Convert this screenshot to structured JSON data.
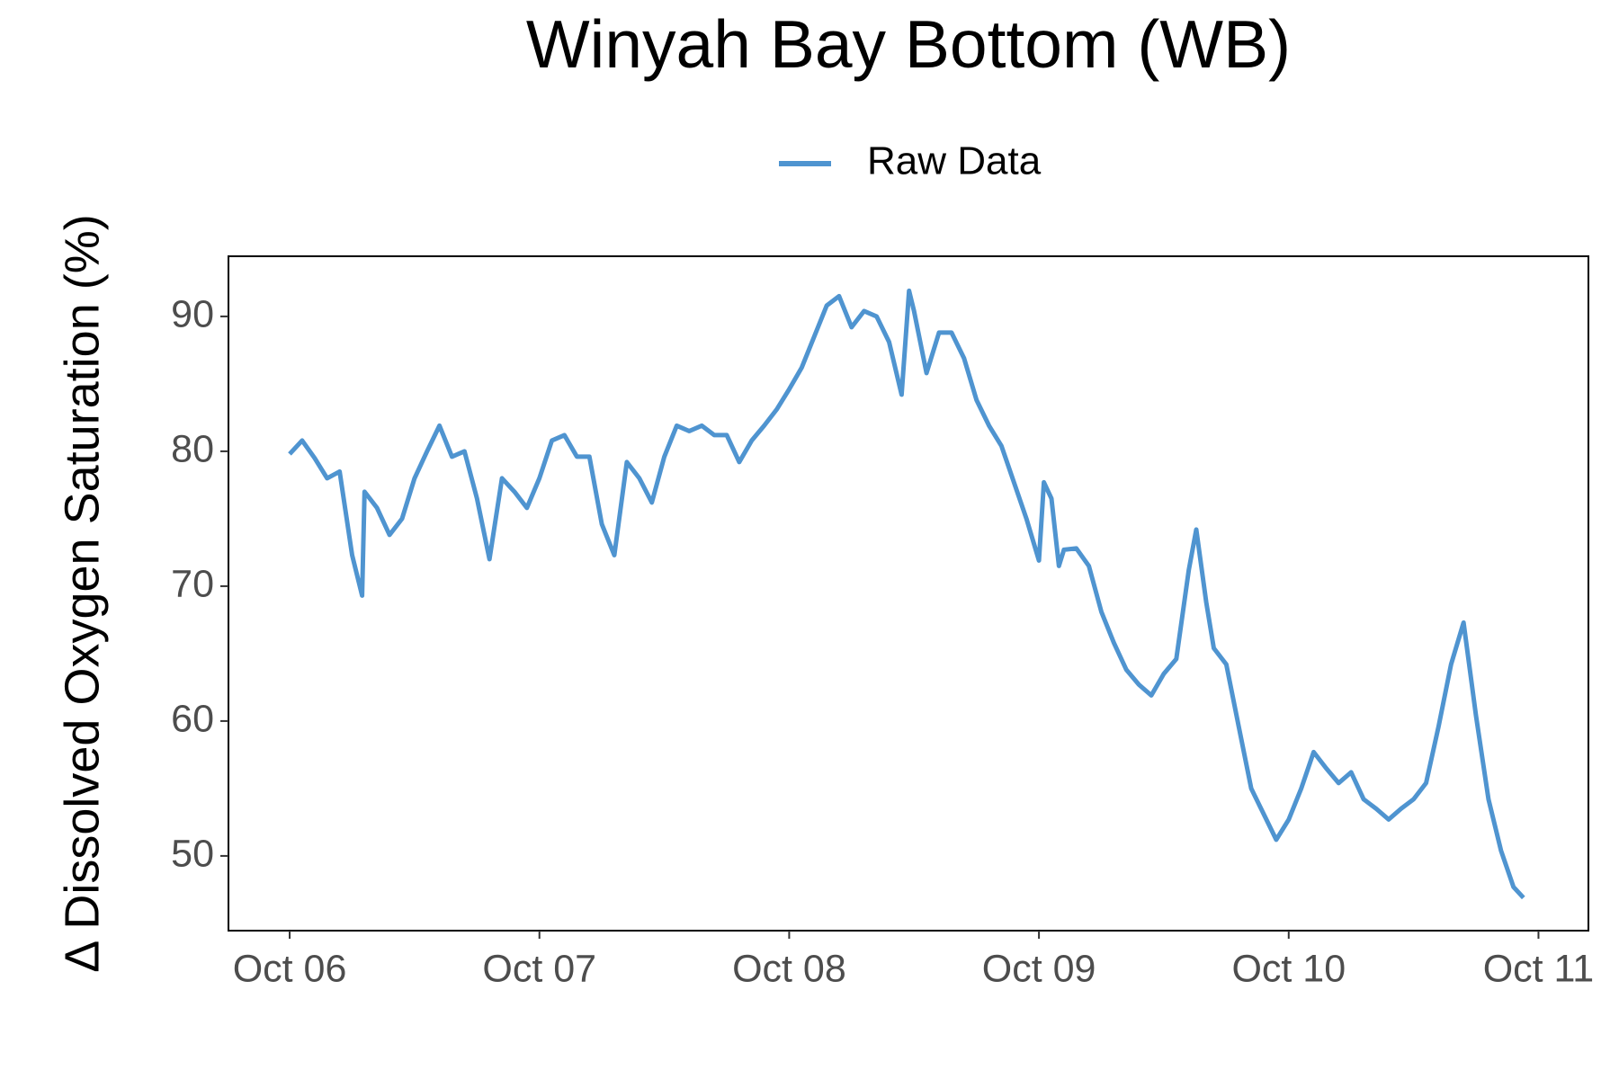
{
  "chart_data": {
    "type": "line",
    "title": "Winyah Bay Bottom (WB)",
    "y_label": "Δ Dissolved Oxygen Saturation (%)",
    "legend": "top",
    "grid": false,
    "x": [
      0,
      0.05,
      0.1,
      0.15,
      0.2,
      0.25,
      0.29,
      0.3,
      0.35,
      0.4,
      0.45,
      0.5,
      0.55,
      0.6,
      0.65,
      0.7,
      0.75,
      0.8,
      0.85,
      0.9,
      0.95,
      1,
      1.05,
      1.1,
      1.15,
      1.2,
      1.25,
      1.3,
      1.35,
      1.4,
      1.45,
      1.5,
      1.55,
      1.6,
      1.65,
      1.7,
      1.75,
      1.8,
      1.85,
      1.9,
      1.95,
      2,
      2.05,
      2.1,
      2.15,
      2.2,
      2.25,
      2.3,
      2.35,
      2.4,
      2.45,
      2.48,
      2.5,
      2.55,
      2.6,
      2.65,
      2.7,
      2.75,
      2.8,
      2.85,
      2.9,
      2.95,
      3,
      3.02,
      3.05,
      3.08,
      3.1,
      3.15,
      3.2,
      3.25,
      3.3,
      3.35,
      3.4,
      3.45,
      3.5,
      3.55,
      3.6,
      3.63,
      3.67,
      3.7,
      3.75,
      3.8,
      3.85,
      3.9,
      3.95,
      4,
      4.05,
      4.1,
      4.15,
      4.2,
      4.25,
      4.3,
      4.35,
      4.4,
      4.45,
      4.5,
      4.55,
      4.6,
      4.65,
      4.7,
      4.75,
      4.8,
      4.85,
      4.9,
      4.94
    ],
    "series": [
      {
        "name": "Raw Data",
        "color": "#4f94d0",
        "values": [
          79.8,
          80.8,
          79.5,
          78.0,
          78.5,
          72.3,
          69.3,
          77.0,
          75.8,
          73.8,
          75.0,
          78.0,
          80.0,
          81.9,
          79.6,
          80.0,
          76.5,
          72.0,
          78.0,
          77.0,
          75.8,
          78.0,
          80.8,
          81.2,
          79.6,
          79.6,
          74.6,
          72.3,
          79.2,
          78.0,
          76.2,
          79.6,
          81.9,
          81.5,
          81.9,
          81.2,
          81.2,
          79.2,
          80.8,
          81.9,
          83.1,
          84.6,
          86.2,
          88.5,
          90.8,
          91.5,
          89.2,
          90.4,
          90.0,
          88.1,
          84.2,
          91.9,
          90.4,
          85.8,
          88.8,
          88.8,
          86.9,
          83.8,
          81.9,
          80.4,
          77.7,
          75.0,
          71.9,
          77.7,
          76.5,
          71.5,
          72.7,
          72.8,
          71.5,
          68.1,
          65.8,
          63.8,
          62.7,
          61.9,
          63.5,
          64.6,
          71.2,
          74.2,
          68.8,
          65.4,
          64.2,
          59.6,
          55.0,
          53.1,
          51.2,
          52.7,
          55.0,
          57.7,
          56.5,
          55.4,
          56.2,
          54.2,
          53.5,
          52.7,
          53.5,
          54.2,
          55.4,
          59.6,
          64.2,
          67.3,
          60.4,
          54.2,
          50.4,
          47.7,
          46.9
        ]
      }
    ],
    "xlim": [
      -0.245,
      5.2
    ],
    "xticks": [
      {
        "value": 0,
        "label": "Oct 06"
      },
      {
        "value": 1,
        "label": "Oct 07"
      },
      {
        "value": 2,
        "label": "Oct 08"
      },
      {
        "value": 3,
        "label": "Oct 09"
      },
      {
        "value": 4,
        "label": "Oct 10"
      },
      {
        "value": 5,
        "label": "Oct 11"
      }
    ],
    "ylim": [
      44.46,
      94.46
    ],
    "yticks": [
      50,
      60,
      70,
      80,
      90
    ]
  }
}
